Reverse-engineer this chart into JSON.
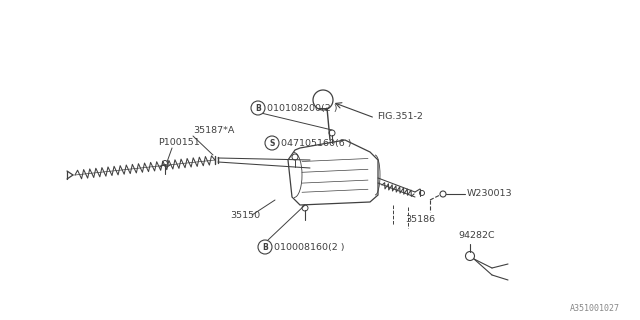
{
  "bg_color": "#ffffff",
  "line_color": "#404040",
  "text_color": "#404040",
  "fig_width": 6.4,
  "fig_height": 3.2,
  "dpi": 100,
  "watermark": "A351001027",
  "labels": {
    "B_top": "010108200(2 )",
    "S_label": "047105160(6 )",
    "fig_label": "FIG.351-2",
    "part_35187": "35187*A",
    "part_P100151": "P100151",
    "part_35150": "35150",
    "part_35186": "35186",
    "part_B_bottom": "010008160(2 )",
    "part_W230013": "W230013",
    "part_94282C": "94282C"
  }
}
